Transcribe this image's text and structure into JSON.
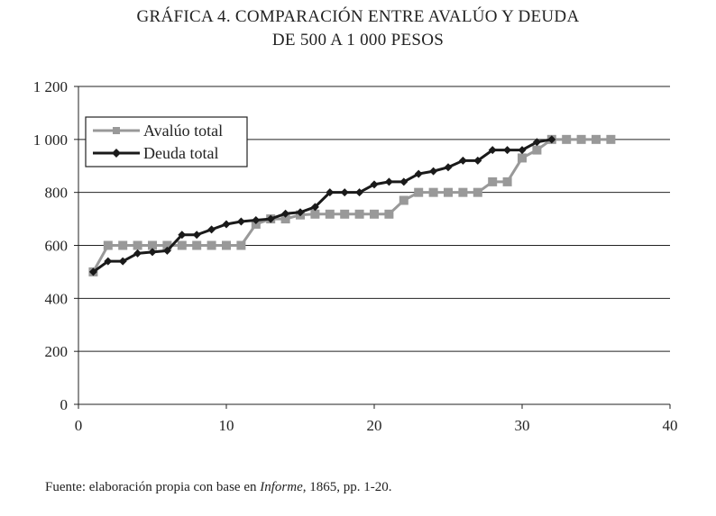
{
  "chart_data": {
    "type": "line",
    "title": "GRÁFICA 4. COMPARACIÓN ENTRE AVALÚO Y DEUDA",
    "subtitle": "DE 500 A 1 000 PESOS",
    "xlabel": "",
    "ylabel": "",
    "xlim": [
      0,
      40
    ],
    "ylim": [
      0,
      1200
    ],
    "xticks": [
      0,
      10,
      20,
      30,
      40
    ],
    "yticks": [
      0,
      200,
      400,
      600,
      800,
      1000,
      1200
    ],
    "ytick_labels": [
      "0",
      "200",
      "400",
      "600",
      "800",
      "1 000",
      "1 200"
    ],
    "grid": "horizontal",
    "legend_position": "top-left",
    "series": [
      {
        "name": "Avalúo total",
        "color": "#999999",
        "marker": "square",
        "x": [
          1,
          2,
          3,
          4,
          5,
          6,
          7,
          8,
          9,
          10,
          11,
          12,
          13,
          14,
          15,
          16,
          17,
          18,
          19,
          20,
          21,
          22,
          23,
          24,
          25,
          26,
          27,
          28,
          29,
          30,
          31,
          32,
          33,
          34,
          35,
          36
        ],
        "values": [
          500,
          600,
          600,
          600,
          600,
          600,
          600,
          600,
          600,
          600,
          600,
          680,
          700,
          700,
          715,
          718,
          718,
          718,
          718,
          718,
          718,
          770,
          800,
          800,
          800,
          800,
          800,
          840,
          840,
          930,
          960,
          1000,
          1000,
          1000,
          1000,
          1000
        ]
      },
      {
        "name": "Deuda total",
        "color": "#1a1a1a",
        "marker": "diamond",
        "x": [
          1,
          2,
          3,
          4,
          5,
          6,
          7,
          8,
          9,
          10,
          11,
          12,
          13,
          14,
          15,
          16,
          17,
          18,
          19,
          20,
          21,
          22,
          23,
          24,
          25,
          26,
          27,
          28,
          29,
          30,
          31,
          32
        ],
        "values": [
          500,
          540,
          540,
          570,
          575,
          580,
          640,
          640,
          660,
          680,
          690,
          695,
          700,
          720,
          725,
          745,
          800,
          800,
          800,
          830,
          840,
          840,
          870,
          880,
          895,
          920,
          920,
          960,
          960,
          960,
          990,
          1000
        ]
      }
    ]
  },
  "source": {
    "prefix": "Fuente: elaboración propia con base en ",
    "italic": "Informe",
    "suffix": ", 1865, pp. 1-20."
  }
}
